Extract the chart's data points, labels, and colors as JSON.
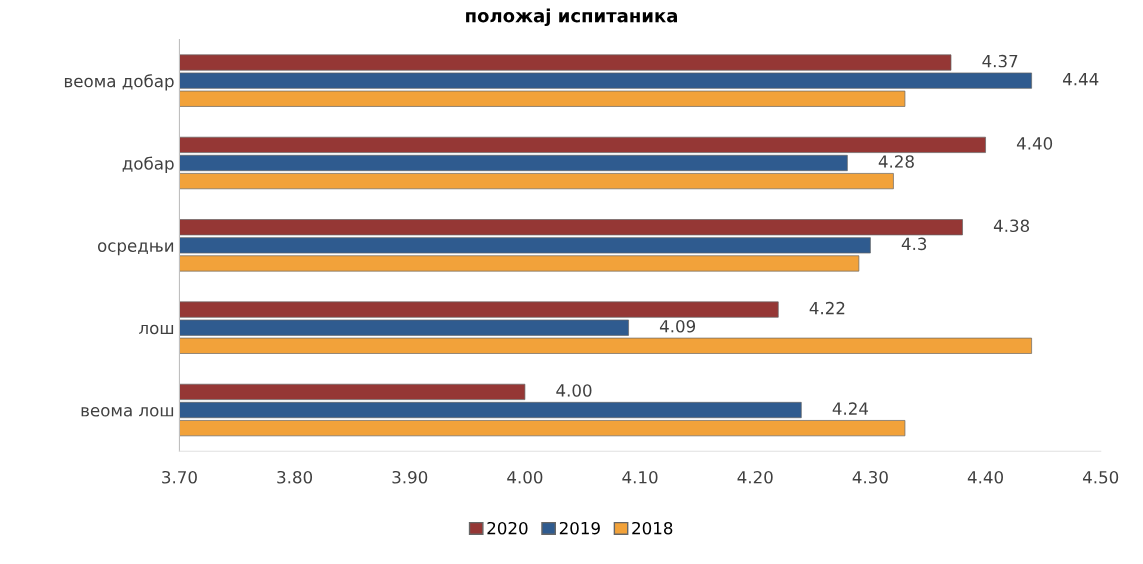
{
  "chart_data": {
    "type": "bar",
    "orientation": "horizontal",
    "title": "положај испитаника",
    "categories": [
      "веома добар",
      "добар",
      "осредњи",
      "лош",
      "веома лош"
    ],
    "series": [
      {
        "name": "2020",
        "color": "#953735",
        "values": [
          4.37,
          4.4,
          4.38,
          4.22,
          4.0
        ],
        "value_labels": [
          "4.37",
          "4.40",
          "4.38",
          "4.22",
          "4.00"
        ]
      },
      {
        "name": "2019",
        "color": "#2f5b8f",
        "values": [
          4.44,
          4.28,
          4.3,
          4.09,
          4.24
        ],
        "value_labels": [
          "4.44",
          "4.28",
          "4.3",
          "4.09",
          "4.24"
        ]
      },
      {
        "name": "2018",
        "color": "#f2a23a",
        "values": [
          4.33,
          4.32,
          4.29,
          4.44,
          4.33
        ]
      }
    ],
    "xlim": [
      3.7,
      4.5
    ],
    "xticks": [
      {
        "value": 3.7,
        "label": "3.70"
      },
      {
        "value": 3.8,
        "label": "3.80"
      },
      {
        "value": 3.9,
        "label": "3.90"
      },
      {
        "value": 4.0,
        "label": "4.00"
      },
      {
        "value": 4.1,
        "label": "4.10"
      },
      {
        "value": 4.2,
        "label": "4.20"
      },
      {
        "value": 4.3,
        "label": "4.30"
      },
      {
        "value": 4.4,
        "label": "4.40"
      },
      {
        "value": 4.5,
        "label": "4.50"
      }
    ],
    "grid": false,
    "legend": "bottom"
  }
}
